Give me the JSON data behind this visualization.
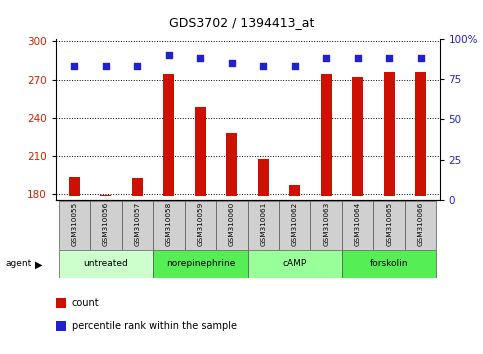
{
  "title": "GDS3702 / 1394413_at",
  "samples": [
    "GSM310055",
    "GSM310056",
    "GSM310057",
    "GSM310058",
    "GSM310059",
    "GSM310060",
    "GSM310061",
    "GSM310062",
    "GSM310063",
    "GSM310064",
    "GSM310065",
    "GSM310066"
  ],
  "counts": [
    193,
    179,
    192,
    274,
    248,
    228,
    207,
    187,
    274,
    272,
    276,
    276
  ],
  "percentile_ranks": [
    83,
    83,
    83,
    90,
    88,
    85,
    83,
    83,
    88,
    88,
    88,
    88
  ],
  "groups": [
    {
      "label": "untreated",
      "start": 0,
      "end": 3,
      "color": "#ccffcc"
    },
    {
      "label": "norepinephrine",
      "start": 3,
      "end": 6,
      "color": "#55ee55"
    },
    {
      "label": "cAMP",
      "start": 6,
      "end": 9,
      "color": "#99ff99"
    },
    {
      "label": "forskolin",
      "start": 9,
      "end": 12,
      "color": "#55ee55"
    }
  ],
  "ylim_left": [
    175,
    302
  ],
  "yticks_left": [
    180,
    210,
    240,
    270,
    300
  ],
  "ylim_right": [
    0,
    100
  ],
  "yticks_right": [
    0,
    25,
    50,
    75,
    100
  ],
  "bar_color": "#cc1100",
  "dot_color": "#2222cc",
  "bar_base": 178,
  "tick_label_color_left": "#cc2200",
  "tick_label_color_right": "#2222cc",
  "agent_label": "agent",
  "legend_count_label": "count",
  "legend_pct_label": "percentile rank within the sample"
}
